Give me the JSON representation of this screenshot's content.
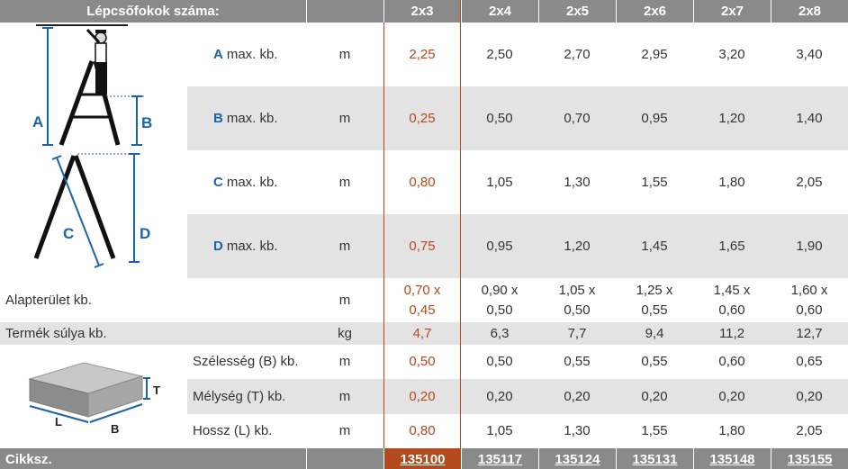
{
  "header": {
    "label": "Lépcsőfokok száma:",
    "columns": [
      "2x3",
      "2x4",
      "2x5",
      "2x6",
      "2x7",
      "2x8"
    ]
  },
  "dimensions": [
    {
      "letter": "A",
      "label": "max. kb.",
      "unit": "m",
      "values": [
        "2,25",
        "2,50",
        "2,70",
        "2,95",
        "3,20",
        "3,40"
      ]
    },
    {
      "letter": "B",
      "label": "max. kb.",
      "unit": "m",
      "values": [
        "0,25",
        "0,50",
        "0,70",
        "0,95",
        "1,20",
        "1,40"
      ]
    },
    {
      "letter": "C",
      "label": "max. kb.",
      "unit": "m",
      "values": [
        "0,80",
        "1,05",
        "1,30",
        "1,55",
        "1,80",
        "2,05"
      ]
    },
    {
      "letter": "D",
      "label": "max. kb.",
      "unit": "m",
      "values": [
        "0,75",
        "0,95",
        "1,20",
        "1,45",
        "1,65",
        "1,90"
      ]
    }
  ],
  "footprint": {
    "label": "Alapterület kb.",
    "unit": "m",
    "values": [
      {
        "line1": "0,70 x",
        "line2": "0,45"
      },
      {
        "line1": "0,90 x",
        "line2": "0,50"
      },
      {
        "line1": "1,05 x",
        "line2": "0,50"
      },
      {
        "line1": "1,25 x",
        "line2": "0,55"
      },
      {
        "line1": "1,45 x",
        "line2": "0,60"
      },
      {
        "line1": "1,60 x",
        "line2": "0,60"
      }
    ]
  },
  "weight": {
    "label": "Termék súlya kb.",
    "unit": "kg",
    "values": [
      "4,7",
      "6,3",
      "7,7",
      "9,4",
      "11,2",
      "12,7"
    ]
  },
  "package": [
    {
      "label": "Szélesség (B) kb.",
      "unit": "m",
      "values": [
        "0,50",
        "0,50",
        "0,55",
        "0,55",
        "0,60",
        "0,65"
      ]
    },
    {
      "label": "Mélység (T) kb.",
      "unit": "m",
      "values": [
        "0,20",
        "0,20",
        "0,20",
        "0,20",
        "0,20",
        "0,20"
      ]
    },
    {
      "label": "Hossz (L) kb.",
      "unit": "m",
      "values": [
        "0,80",
        "1,05",
        "1,30",
        "1,55",
        "1,80",
        "2,05"
      ]
    }
  ],
  "footer": {
    "label": "Cikksz.",
    "codes": [
      "135100",
      "135117",
      "135124",
      "135131",
      "135148",
      "135155"
    ]
  },
  "diagram_labels": {
    "ladder": {
      "a": "A",
      "b": "B",
      "c": "C",
      "d": "D"
    },
    "box": {
      "t": "T",
      "l": "L",
      "b": "B"
    }
  },
  "colors": {
    "header_bg": "#8a8a8a",
    "highlight": "#b7471a",
    "footer_highlight_bg": "#b24a1e",
    "row_gray": "#e3e3e3",
    "dimension_letter": "#1b63a8",
    "diagram_blue": "#1b63a8"
  }
}
